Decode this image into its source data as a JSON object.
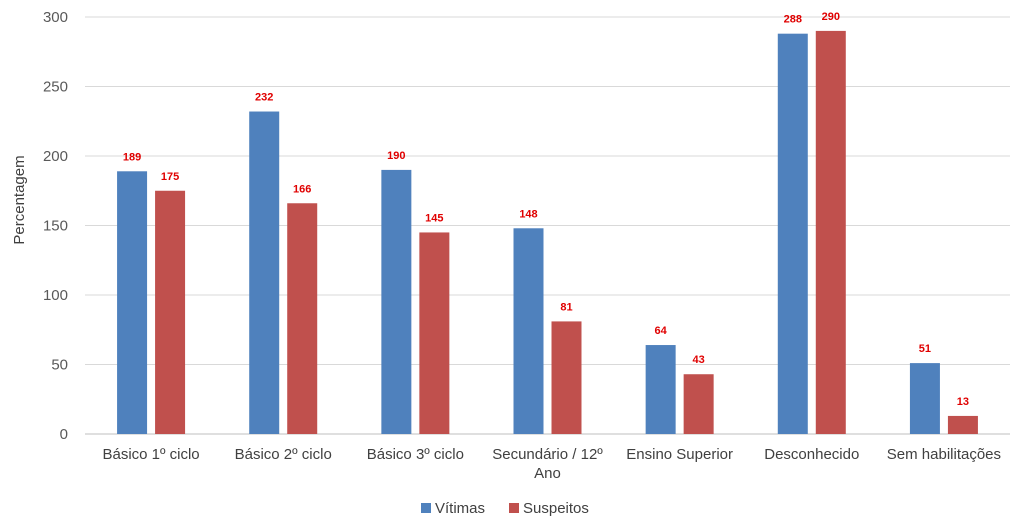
{
  "chart_data": {
    "type": "bar",
    "title": "",
    "xlabel": "",
    "ylabel": "Percentagem",
    "ylim": [
      0,
      300
    ],
    "yticks": [
      0,
      50,
      100,
      150,
      200,
      250,
      300
    ],
    "grid": true,
    "legend": "bottom",
    "categories": [
      [
        "Básico 1º ciclo"
      ],
      [
        "Básico 2º ciclo"
      ],
      [
        "Básico 3º ciclo"
      ],
      [
        "Secundário / 12º",
        "Ano"
      ],
      [
        "Ensino Superior"
      ],
      [
        "Desconhecido"
      ],
      [
        "Sem habilitações"
      ]
    ],
    "series": [
      {
        "name": "Vítimas",
        "color": "#4f81bd",
        "values": [
          189,
          232,
          190,
          148,
          64,
          288,
          51
        ]
      },
      {
        "name": "Suspeitos",
        "color": "#c0504d",
        "values": [
          175,
          166,
          145,
          81,
          43,
          290,
          13
        ]
      }
    ],
    "label_color": "#e00000"
  }
}
